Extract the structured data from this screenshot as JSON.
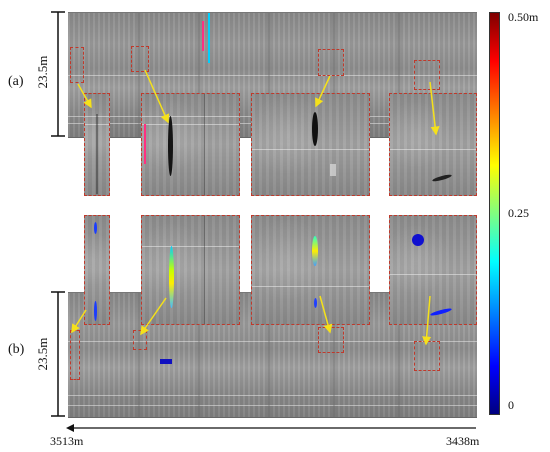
{
  "panels": {
    "a_label": "(a)",
    "b_label": "(b)"
  },
  "dimensions": {
    "height_a": "23.5m",
    "height_b": "23.5m",
    "distance_left": "3513m",
    "distance_right": "3438m"
  },
  "colorbar": {
    "max_label": "0.50m",
    "mid_label": "0.25",
    "min_label": "0",
    "colors": [
      "#7f0000",
      "#ff0000",
      "#ff8000",
      "#ffff00",
      "#80ff80",
      "#00ffff",
      "#0080ff",
      "#0000ff",
      "#00007f"
    ]
  },
  "annotation_colors": {
    "region_box": "#c0392b",
    "pointer_arrow": "#f5e11a"
  }
}
